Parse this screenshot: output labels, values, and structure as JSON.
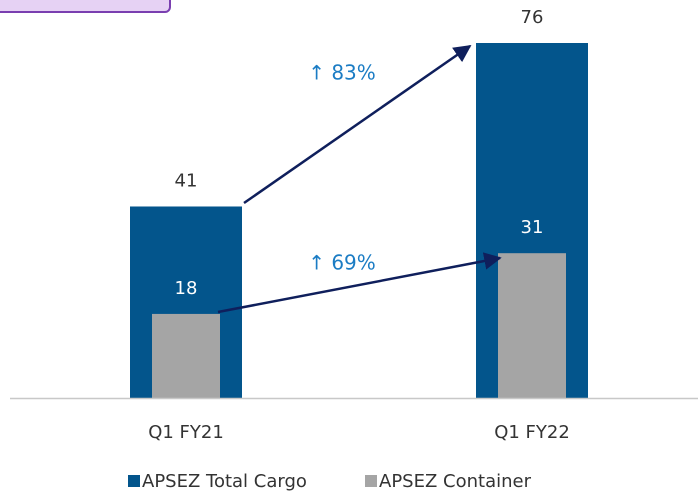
{
  "chart_data": {
    "type": "bar",
    "categories": [
      "Q1 FY21",
      "Q1 FY22"
    ],
    "series": [
      {
        "name": "APSEZ Total Cargo",
        "color": "#03558c",
        "values": [
          41,
          76
        ]
      },
      {
        "name": "APSEZ Container",
        "color": "#a5a5a5",
        "values": [
          18,
          31
        ]
      }
    ],
    "annotations": [
      "↑ 83%",
      "↑ 69%"
    ],
    "legend": "bottom"
  }
}
